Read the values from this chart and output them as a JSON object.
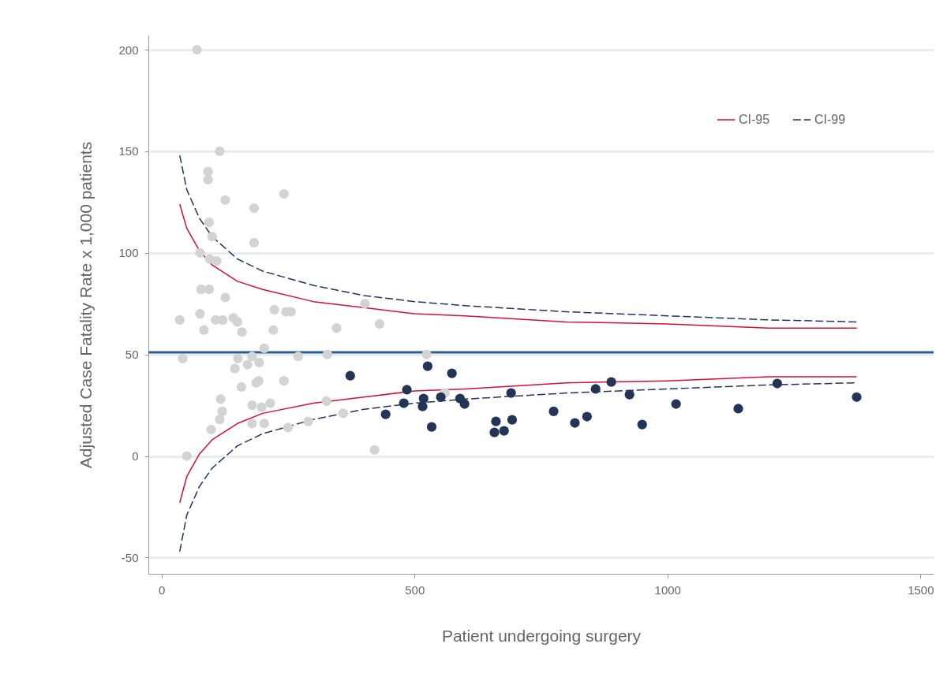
{
  "chart_data": {
    "type": "scatter",
    "xlabel": "Patient undergoing surgery",
    "ylabel": "Adjusted Case Fatality Rate x 1,000 patients",
    "xlim": [
      -26,
      1526
    ],
    "ylim": [
      -58,
      207
    ],
    "xticks": [
      0,
      500,
      1000,
      1500
    ],
    "yticks": [
      -50,
      0,
      50,
      100,
      150,
      200
    ],
    "grid": "y",
    "legend": "top right",
    "series": [
      {
        "type": "scatter",
        "marker": "circle",
        "color": "#d3d3d3",
        "x": [
          70,
          115,
          92,
          92,
          126,
          242,
          183,
          94,
          100,
          183,
          76,
          95,
          109,
          78,
          94,
          126,
          36,
          76,
          84,
          107,
          121,
          142,
          150,
          159,
          223,
          246,
          256,
          221,
          346,
          402,
          431,
          42,
          151,
          170,
          179,
          193,
          203,
          192,
          242,
          270,
          328,
          524,
          145,
          158,
          187,
          117,
          120,
          115,
          179,
          198,
          215,
          179,
          203,
          250,
          290,
          326,
          359,
          98,
          50,
          421,
          560
        ],
        "values": [
          200,
          150,
          140,
          136,
          126,
          129,
          122,
          115,
          108,
          105,
          100,
          97,
          96,
          82,
          82,
          78,
          67,
          70,
          62,
          67,
          67,
          68,
          66,
          61,
          72,
          71,
          71,
          62,
          63,
          75,
          65,
          48,
          48,
          45,
          49,
          46,
          53,
          37,
          37,
          49,
          50,
          50,
          43,
          34,
          36,
          28,
          22,
          18,
          25,
          24,
          26,
          16,
          16,
          14,
          17,
          27,
          21,
          13,
          0,
          3,
          31
        ]
      },
      {
        "type": "scatter",
        "marker": "circle",
        "color": "#233457",
        "x": [
          373,
          485,
          479,
          443,
          518,
          516,
          526,
          534,
          552,
          574,
          590,
          599,
          661,
          658,
          677,
          693,
          691,
          775,
          817,
          841,
          858,
          889,
          925,
          950,
          1017,
          1140,
          1217,
          1374
        ],
        "values": [
          39.5,
          32.6,
          26,
          20.5,
          28.3,
          24.4,
          44.2,
          14.3,
          29,
          40.7,
          28.3,
          25.6,
          17,
          11.6,
          12.4,
          17.8,
          31,
          22,
          16.3,
          19.4,
          33,
          36.4,
          30.2,
          15.5,
          25.6,
          23.3,
          35.7,
          29
        ]
      },
      {
        "type": "line",
        "name": "CI-95",
        "color": "#d0103a",
        "line_style": "solid",
        "x": [
          36,
          50,
          75,
          100,
          150,
          200,
          300,
          400,
          500,
          600,
          800,
          1000,
          1200,
          1374
        ],
        "values": [
          124,
          112,
          101,
          94,
          86,
          82,
          76,
          73,
          70,
          69,
          66,
          65,
          63,
          63
        ]
      },
      {
        "type": "line",
        "color": "#d0103a",
        "line_style": "solid",
        "x": [
          36,
          50,
          75,
          100,
          150,
          200,
          300,
          400,
          500,
          600,
          800,
          1000,
          1200,
          1374
        ],
        "values": [
          -23,
          -10,
          1,
          8,
          16,
          21,
          26,
          29,
          32,
          33,
          36,
          37,
          39,
          39
        ]
      },
      {
        "type": "line",
        "name": "CI-99",
        "color": "#1f3560",
        "line_style": "dashed",
        "x": [
          36,
          50,
          75,
          100,
          150,
          200,
          300,
          400,
          500,
          600,
          800,
          1000,
          1200,
          1374
        ],
        "values": [
          148,
          131,
          117,
          108,
          97,
          91,
          84,
          79,
          76,
          74,
          71,
          69,
          67,
          66
        ]
      },
      {
        "type": "line",
        "color": "#1f3560",
        "line_style": "dashed",
        "x": [
          36,
          50,
          75,
          100,
          150,
          200,
          300,
          400,
          500,
          600,
          800,
          1000,
          1200,
          1374
        ],
        "values": [
          -47,
          -29,
          -15,
          -6,
          5,
          11,
          18,
          23,
          26,
          28,
          31,
          33,
          35,
          36
        ]
      }
    ],
    "ref_lines": [
      {
        "axis": "y",
        "value": 51,
        "color": "#2c5f8e"
      }
    ]
  }
}
